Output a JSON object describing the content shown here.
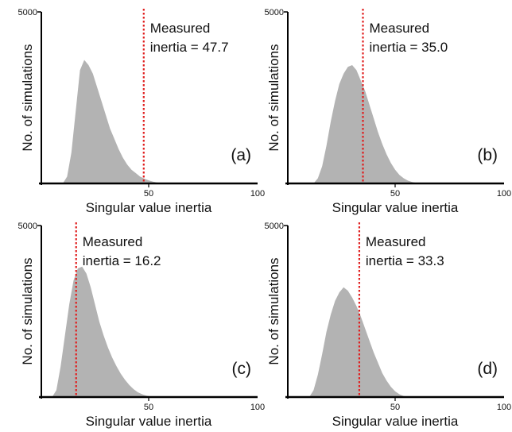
{
  "chart_data": [
    {
      "type": "area",
      "panel_label": "(a)",
      "xlabel": "Singular value inertia",
      "ylabel": "No. of simulations",
      "xlim": [
        0,
        100
      ],
      "ylim": [
        0,
        5000
      ],
      "y_ticks": [
        "5000"
      ],
      "x_ticks": [
        "50",
        "100"
      ],
      "annotation": {
        "line1": "Measured",
        "line2": "inertia = 47.7",
        "value": 47.7
      },
      "series": [
        {
          "x": [
            10,
            12,
            14,
            16,
            18,
            20,
            22,
            24,
            26,
            28,
            30,
            32,
            34,
            36,
            38,
            40,
            42,
            44,
            46,
            48,
            50,
            52,
            54,
            56,
            58
          ],
          "y": [
            0,
            200,
            900,
            2100,
            3300,
            3600,
            3450,
            3200,
            2800,
            2400,
            2000,
            1600,
            1300,
            1000,
            750,
            550,
            400,
            300,
            200,
            140,
            90,
            50,
            25,
            10,
            0
          ]
        }
      ]
    },
    {
      "type": "area",
      "panel_label": "(b)",
      "xlabel": "Singular value inertia",
      "ylabel": "No. of simulations",
      "xlim": [
        0,
        100
      ],
      "ylim": [
        0,
        5000
      ],
      "y_ticks": [
        "5000"
      ],
      "x_ticks": [
        "50",
        "100"
      ],
      "annotation": {
        "line1": "Measured",
        "line2": "inertia = 35.0",
        "value": 35.0
      },
      "series": [
        {
          "x": [
            12,
            14,
            16,
            18,
            20,
            22,
            24,
            26,
            28,
            30,
            32,
            34,
            36,
            38,
            40,
            42,
            44,
            46,
            48,
            50,
            52,
            54,
            56,
            58,
            60,
            62
          ],
          "y": [
            0,
            150,
            500,
            1100,
            1800,
            2400,
            2900,
            3200,
            3400,
            3450,
            3300,
            3000,
            2700,
            2300,
            1900,
            1500,
            1150,
            850,
            600,
            400,
            250,
            150,
            80,
            40,
            15,
            0
          ]
        }
      ]
    },
    {
      "type": "area",
      "panel_label": "(c)",
      "xlabel": "Singular value inertia",
      "ylabel": "No. of simulations",
      "xlim": [
        0,
        100
      ],
      "ylim": [
        0,
        5000
      ],
      "y_ticks": [
        "5000"
      ],
      "x_ticks": [
        "50",
        "100"
      ],
      "annotation": {
        "line1": "Measured",
        "line2": "inertia = 16.2",
        "value": 16.2
      },
      "series": [
        {
          "x": [
            5,
            7,
            9,
            11,
            13,
            15,
            17,
            19,
            21,
            23,
            25,
            27,
            29,
            31,
            33,
            35,
            37,
            39,
            41,
            43,
            45,
            47,
            49,
            51,
            53
          ],
          "y": [
            0,
            200,
            900,
            1800,
            2700,
            3400,
            3750,
            3800,
            3600,
            3200,
            2700,
            2200,
            1800,
            1450,
            1150,
            900,
            680,
            500,
            350,
            230,
            140,
            80,
            40,
            15,
            0
          ]
        }
      ]
    },
    {
      "type": "area",
      "panel_label": "(d)",
      "xlabel": "Singular value inertia",
      "ylabel": "No. of simulations",
      "xlim": [
        0,
        100
      ],
      "ylim": [
        0,
        5000
      ],
      "y_ticks": [
        "5000"
      ],
      "x_ticks": [
        "50",
        "100"
      ],
      "annotation": {
        "line1": "Measured",
        "line2": "inertia = 33.3",
        "value": 33.3
      },
      "series": [
        {
          "x": [
            10,
            12,
            14,
            16,
            18,
            20,
            22,
            24,
            26,
            28,
            30,
            32,
            34,
            36,
            38,
            40,
            42,
            44,
            46,
            48,
            50,
            52,
            54,
            56
          ],
          "y": [
            0,
            200,
            650,
            1250,
            1900,
            2400,
            2800,
            3050,
            3200,
            3100,
            2900,
            2650,
            2350,
            2000,
            1650,
            1300,
            1000,
            700,
            480,
            300,
            170,
            80,
            30,
            0
          ]
        }
      ]
    }
  ],
  "colors": {
    "fill": "#b3b3b3",
    "axis": "#000000",
    "marker_line": "#e02020",
    "text": "#111111"
  }
}
